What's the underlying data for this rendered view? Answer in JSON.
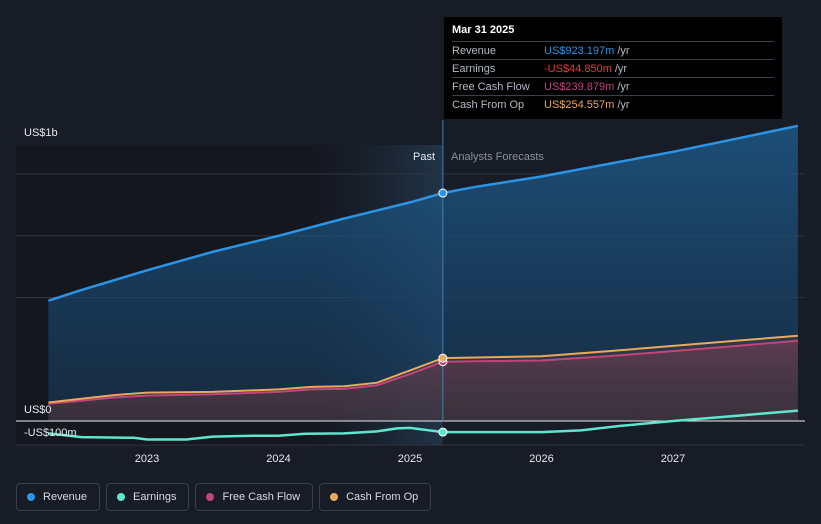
{
  "chart_data": {
    "type": "line",
    "y_tick_labels": [
      "US$1b",
      "US$0",
      "-US$100m"
    ],
    "x_tick_labels": [
      "2023",
      "2024",
      "2025",
      "2026",
      "2027"
    ],
    "past_label": "Past",
    "forecast_label": "Analysts Forecasts",
    "colors": {
      "revenue": "#2b94e6",
      "earnings": "#5ee6cf",
      "fcf": "#c2447a",
      "cfo": "#e8a95a"
    },
    "series": [
      {
        "name": "Revenue",
        "key": "revenue",
        "points": [
          [
            2022.25,
            487
          ],
          [
            2022.5,
            530
          ],
          [
            2023.0,
            610
          ],
          [
            2023.5,
            685
          ],
          [
            2024.0,
            750
          ],
          [
            2024.5,
            820
          ],
          [
            2025.0,
            885
          ],
          [
            2025.25,
            923
          ],
          [
            2025.5,
            948
          ],
          [
            2026.0,
            990
          ],
          [
            2026.5,
            1040
          ],
          [
            2027.0,
            1090
          ],
          [
            2027.5,
            1145
          ],
          [
            2027.95,
            1195
          ]
        ]
      },
      {
        "name": "Earnings",
        "key": "earnings",
        "points": [
          [
            2022.25,
            -50
          ],
          [
            2022.5,
            -65
          ],
          [
            2022.9,
            -68
          ],
          [
            2023.0,
            -75
          ],
          [
            2023.3,
            -75
          ],
          [
            2023.5,
            -63
          ],
          [
            2023.8,
            -60
          ],
          [
            2024.0,
            -60
          ],
          [
            2024.2,
            -52
          ],
          [
            2024.5,
            -50
          ],
          [
            2024.75,
            -42
          ],
          [
            2024.9,
            -30
          ],
          [
            2025.0,
            -28
          ],
          [
            2025.25,
            -44.85
          ],
          [
            2025.5,
            -45
          ],
          [
            2026.0,
            -45
          ],
          [
            2026.3,
            -38
          ],
          [
            2026.6,
            -20
          ],
          [
            2027.0,
            0
          ],
          [
            2027.5,
            22
          ],
          [
            2027.95,
            42
          ]
        ]
      },
      {
        "name": "Free Cash Flow",
        "key": "fcf",
        "points": [
          [
            2022.25,
            70
          ],
          [
            2022.5,
            82
          ],
          [
            2022.75,
            95
          ],
          [
            2023.0,
            103
          ],
          [
            2023.5,
            108
          ],
          [
            2024.0,
            118
          ],
          [
            2024.25,
            128
          ],
          [
            2024.5,
            130
          ],
          [
            2024.75,
            145
          ],
          [
            2025.0,
            190
          ],
          [
            2025.25,
            239.879
          ],
          [
            2025.5,
            242
          ],
          [
            2026.0,
            245
          ],
          [
            2026.5,
            262
          ],
          [
            2027.0,
            283
          ],
          [
            2027.5,
            305
          ],
          [
            2027.95,
            325
          ]
        ]
      },
      {
        "name": "Cash From Op",
        "key": "cfo",
        "points": [
          [
            2022.25,
            75
          ],
          [
            2022.5,
            90
          ],
          [
            2022.75,
            105
          ],
          [
            2023.0,
            115
          ],
          [
            2023.5,
            118
          ],
          [
            2024.0,
            128
          ],
          [
            2024.25,
            138
          ],
          [
            2024.5,
            141
          ],
          [
            2024.75,
            155
          ],
          [
            2025.0,
            205
          ],
          [
            2025.25,
            254.557
          ],
          [
            2025.5,
            257
          ],
          [
            2026.0,
            262
          ],
          [
            2026.5,
            282
          ],
          [
            2027.0,
            304
          ],
          [
            2027.5,
            326
          ],
          [
            2027.95,
            345
          ]
        ]
      }
    ]
  },
  "tooltip": {
    "date": "Mar 31 2025",
    "rows": [
      {
        "label": "Revenue",
        "value": "US$923.197m",
        "unit": "/yr",
        "color": "#2b94e6"
      },
      {
        "label": "Earnings",
        "value": "-US$44.850m",
        "unit": "/yr",
        "color": "#e0403a"
      },
      {
        "label": "Free Cash Flow",
        "value": "US$239.879m",
        "unit": "/yr",
        "color": "#c2447a"
      },
      {
        "label": "Cash From Op",
        "value": "US$254.557m",
        "unit": "/yr",
        "color": "#e8a95a"
      }
    ]
  },
  "legend": [
    {
      "label": "Revenue",
      "color": "#2b94e6"
    },
    {
      "label": "Earnings",
      "color": "#5ee6cf"
    },
    {
      "label": "Free Cash Flow",
      "color": "#c2447a"
    },
    {
      "label": "Cash From Op",
      "color": "#e8a95a"
    }
  ]
}
